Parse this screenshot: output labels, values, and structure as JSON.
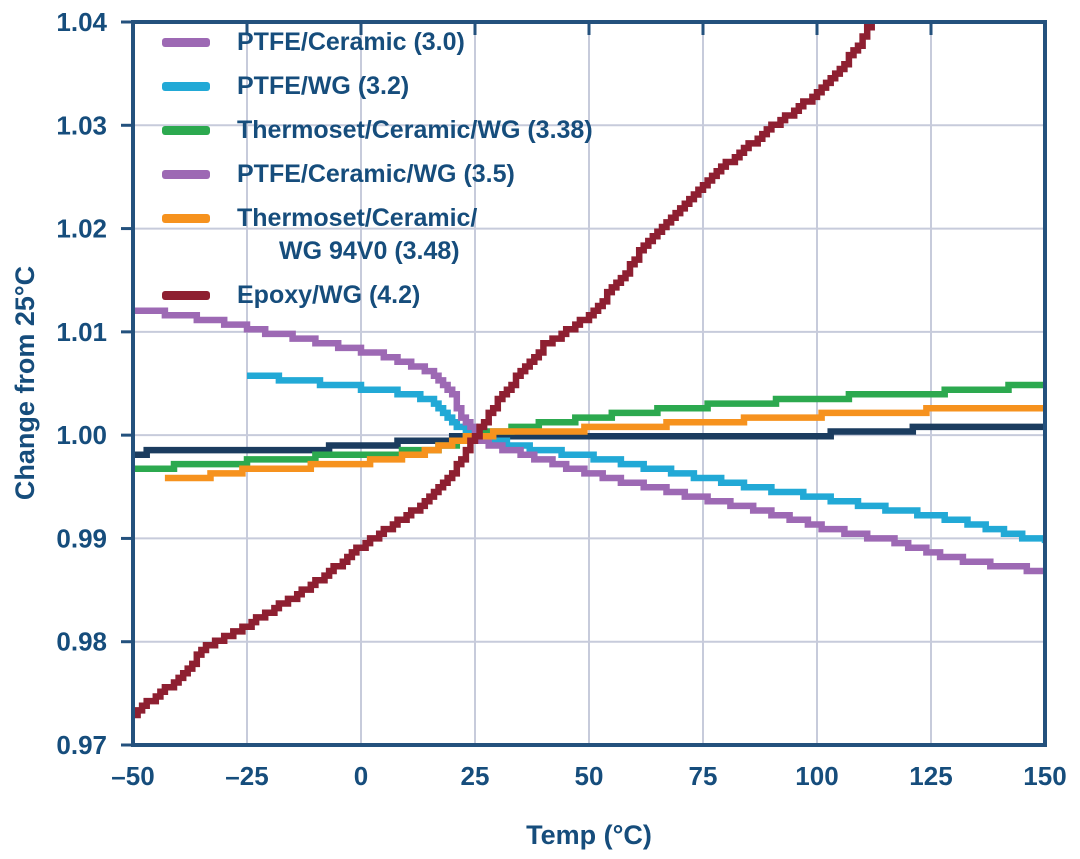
{
  "colors": {
    "text": "#164d7c",
    "plot_border": "#24517d",
    "gridline": "#c7cbdb",
    "background": "#ffffff"
  },
  "chart_data": {
    "type": "line",
    "title": "",
    "xlabel": "Temp (°C)",
    "ylabel": "Change from 25°C",
    "xlim": [
      -50,
      150
    ],
    "ylim": [
      0.97,
      1.04
    ],
    "xticks": [
      -50,
      -25,
      0,
      25,
      50,
      75,
      100,
      125,
      150
    ],
    "xtick_labels": [
      "–50",
      "–25",
      "0",
      "25",
      "50",
      "75",
      "100",
      "125",
      "150"
    ],
    "yticks": [
      0.97,
      0.98,
      0.99,
      1.0,
      1.01,
      1.02,
      1.03,
      1.04
    ],
    "ytick_labels": [
      "0.97",
      "0.98",
      "0.99",
      "1.00",
      "1.01",
      "1.02",
      "1.03",
      "1.04"
    ],
    "grid": true,
    "legend_position": "top-left",
    "series": [
      {
        "name": "PTFE/Ceramic (3.0)",
        "legend_lines": [
          "PTFE/Ceramic (3.0)"
        ],
        "legend_color": "#9d69b4",
        "line_color": "#1b3c5f",
        "points": [
          [
            -50,
            0.9983
          ],
          [
            -40,
            0.9984
          ],
          [
            -30,
            0.9985
          ],
          [
            -25,
            0.9986
          ],
          [
            -15,
            0.9987
          ],
          [
            -5,
            0.9988
          ],
          [
            0,
            0.999
          ],
          [
            10,
            0.9993
          ],
          [
            15,
            0.9995
          ],
          [
            20,
            0.9997
          ],
          [
            25,
            1.0
          ],
          [
            28,
            0.9998
          ],
          [
            40,
            0.9998
          ],
          [
            50,
            0.9999
          ],
          [
            60,
            1.0
          ],
          [
            75,
            1.0
          ],
          [
            90,
            1.0001
          ],
          [
            100,
            1.0001
          ],
          [
            110,
            1.0002
          ],
          [
            118,
            1.0002
          ],
          [
            121,
            1.0006
          ],
          [
            135,
            1.0006
          ],
          [
            150,
            1.0006
          ]
        ]
      },
      {
        "name": "PTFE/WG (3.2)",
        "legend_lines": [
          "PTFE/WG (3.2)"
        ],
        "legend_color": "#22a9d6",
        "line_color": "#22a9d6",
        "points": [
          [
            -25,
            1.0058
          ],
          [
            -20,
            1.0056
          ],
          [
            -15,
            1.0054
          ],
          [
            -10,
            1.0051
          ],
          [
            -5,
            1.0049
          ],
          [
            0,
            1.0046
          ],
          [
            5,
            1.0043
          ],
          [
            10,
            1.004
          ],
          [
            14,
            1.0036
          ],
          [
            17,
            1.0028
          ],
          [
            20,
            1.0014
          ],
          [
            22,
            1.0006
          ],
          [
            25,
            1.0
          ],
          [
            28,
            0.9996
          ],
          [
            35,
            0.9989
          ],
          [
            42,
            0.9984
          ],
          [
            50,
            0.9979
          ],
          [
            58,
            0.9973
          ],
          [
            65,
            0.9967
          ],
          [
            75,
            0.9959
          ],
          [
            82,
            0.9953
          ],
          [
            90,
            0.9947
          ],
          [
            100,
            0.994
          ],
          [
            108,
            0.9934
          ],
          [
            115,
            0.9929
          ],
          [
            125,
            0.9922
          ],
          [
            133,
            0.9915
          ],
          [
            140,
            0.9907
          ],
          [
            146,
            0.9901
          ],
          [
            150,
            0.9897
          ]
        ]
      },
      {
        "name": "Thermoset/Ceramic/WG (3.38)",
        "legend_lines": [
          "Thermoset/Ceramic/WG (3.38)"
        ],
        "legend_color": "#2ca94f",
        "line_color": "#2ca94f",
        "points": [
          [
            -50,
            0.9968
          ],
          [
            -40,
            0.997
          ],
          [
            -30,
            0.9973
          ],
          [
            -20,
            0.9976
          ],
          [
            -10,
            0.9979
          ],
          [
            0,
            0.9981
          ],
          [
            8,
            0.9983
          ],
          [
            15,
            0.9986
          ],
          [
            20,
            0.9992
          ],
          [
            25,
            1.0
          ],
          [
            30,
            1.0004
          ],
          [
            40,
            1.0011
          ],
          [
            50,
            1.0017
          ],
          [
            60,
            1.0022
          ],
          [
            68,
            1.0025
          ],
          [
            75,
            1.0028
          ],
          [
            85,
            1.0031
          ],
          [
            95,
            1.0034
          ],
          [
            100,
            1.0036
          ],
          [
            110,
            1.0038
          ],
          [
            120,
            1.004
          ],
          [
            125,
            1.0041
          ],
          [
            133,
            1.0043
          ],
          [
            140,
            1.0046
          ],
          [
            150,
            1.0048
          ]
        ]
      },
      {
        "name": "PTFE/Ceramic/WG (3.5)",
        "legend_lines": [
          "PTFE/Ceramic/WG (3.5)"
        ],
        "legend_color": "#9d69b4",
        "line_color": "#9d69b4",
        "points": [
          [
            -50,
            1.0122
          ],
          [
            -40,
            1.0116
          ],
          [
            -30,
            1.0109
          ],
          [
            -25,
            1.0104
          ],
          [
            -20,
            1.0099
          ],
          [
            -10,
            1.0091
          ],
          [
            0,
            1.0082
          ],
          [
            5,
            1.0077
          ],
          [
            10,
            1.007
          ],
          [
            14,
            1.0063
          ],
          [
            17,
            1.0054
          ],
          [
            20,
            1.0038
          ],
          [
            22,
            1.0018
          ],
          [
            25,
            1.0
          ],
          [
            27,
            0.9993
          ],
          [
            30,
            0.9989
          ],
          [
            35,
            0.9982
          ],
          [
            40,
            0.9976
          ],
          [
            50,
            0.9963
          ],
          [
            60,
            0.9953
          ],
          [
            75,
            0.9939
          ],
          [
            85,
            0.993
          ],
          [
            95,
            0.9919
          ],
          [
            100,
            0.9912
          ],
          [
            110,
            0.9903
          ],
          [
            118,
            0.9896
          ],
          [
            125,
            0.9886
          ],
          [
            135,
            0.9877
          ],
          [
            143,
            0.9872
          ],
          [
            150,
            0.9868
          ]
        ]
      },
      {
        "name": "Thermoset/Ceramic/WG 94V0 (3.48)",
        "legend_lines": [
          "Thermoset/Ceramic/",
          "WG 94V0 (3.48)"
        ],
        "legend_color": "#f6921e",
        "line_color": "#f6921e",
        "points": [
          [
            -43,
            0.9957
          ],
          [
            -35,
            0.996
          ],
          [
            -25,
            0.9966
          ],
          [
            -15,
            0.9969
          ],
          [
            -5,
            0.9971
          ],
          [
            0,
            0.9973
          ],
          [
            8,
            0.9978
          ],
          [
            15,
            0.9985
          ],
          [
            20,
            0.9993
          ],
          [
            25,
            1.0
          ],
          [
            30,
            1.0002
          ],
          [
            40,
            1.0004
          ],
          [
            50,
            1.0006
          ],
          [
            60,
            1.0009
          ],
          [
            75,
            1.0012
          ],
          [
            88,
            1.0016
          ],
          [
            100,
            1.0019
          ],
          [
            112,
            1.0022
          ],
          [
            125,
            1.0024
          ],
          [
            138,
            1.0026
          ],
          [
            150,
            1.0027
          ]
        ]
      },
      {
        "name": "Epoxy/WG (4.2)",
        "legend_lines": [
          "Epoxy/WG (4.2)"
        ],
        "legend_color": "#8e1f31",
        "line_color": "#8e1f31",
        "points": [
          [
            -50,
            0.9731
          ],
          [
            -45,
            0.9747
          ],
          [
            -40,
            0.9765
          ],
          [
            -34,
            0.9796
          ],
          [
            -28,
            0.981
          ],
          [
            -25,
            0.9816
          ],
          [
            -20,
            0.983
          ],
          [
            -15,
            0.9843
          ],
          [
            -10,
            0.9858
          ],
          [
            -5,
            0.9874
          ],
          [
            0,
            0.9893
          ],
          [
            5,
            0.9907
          ],
          [
            10,
            0.9922
          ],
          [
            15,
            0.994
          ],
          [
            20,
            0.9964
          ],
          [
            25,
            1.0
          ],
          [
            29,
            1.0028
          ],
          [
            34,
            1.0056
          ],
          [
            40,
            1.0087
          ],
          [
            46,
            1.0103
          ],
          [
            50,
            1.0117
          ],
          [
            56,
            1.0146
          ],
          [
            62,
            1.0183
          ],
          [
            67,
            1.0207
          ],
          [
            72,
            1.023
          ],
          [
            78,
            1.0255
          ],
          [
            84,
            1.0277
          ],
          [
            90,
            1.0299
          ],
          [
            95,
            1.0314
          ],
          [
            100,
            1.0331
          ],
          [
            104,
            1.035
          ],
          [
            108,
            1.0372
          ],
          [
            112,
            1.04
          ]
        ]
      }
    ]
  }
}
